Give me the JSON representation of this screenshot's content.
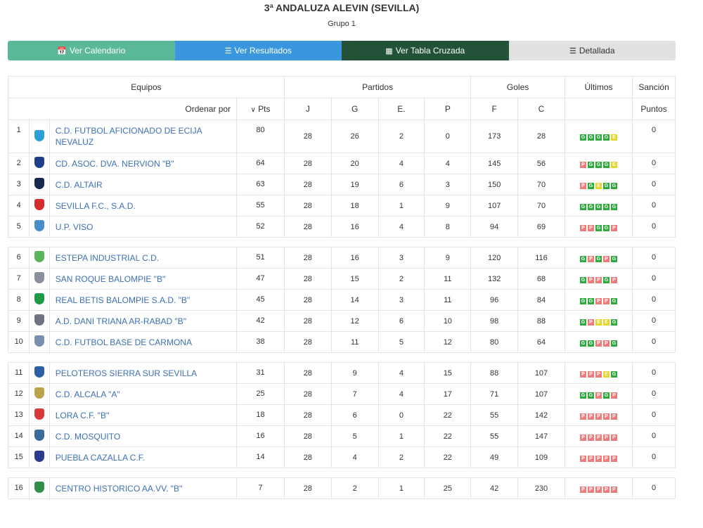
{
  "header": {
    "title": "3ª ANDALUZA ALEVIN (SEVILLA)",
    "subtitle": "Grupo 1"
  },
  "tabs": [
    {
      "label": "Ver Calendario",
      "icon": "calendar-icon"
    },
    {
      "label": "Ver Resultados",
      "icon": "list-icon"
    },
    {
      "label": "Ver Tabla Cruzada",
      "icon": "grid-icon"
    },
    {
      "label": "Detallada",
      "icon": "detail-list-icon"
    }
  ],
  "table_head": {
    "equipos": "Equipos",
    "partidos": "Partidos",
    "goles": "Goles",
    "ultimos": "Últimos",
    "sancion": "Sanción",
    "ordenar": "Ordenar por",
    "pts": "Pts",
    "j": "J",
    "g": "G",
    "e": "E.",
    "p": "P",
    "f": "F",
    "c": "C",
    "puntos": "Puntos"
  },
  "colors": {
    "win": "#2eaa3c",
    "loss": "#ee7b7b",
    "draw": "#e8d52a",
    "link": "#3d6fb3"
  },
  "groups": [
    [
      {
        "pos": "1",
        "team": "C.D. FUTBOL AFICIONADO DE ECIJA NEVALUZ",
        "pts": "80",
        "j": "28",
        "g": "26",
        "e": "2",
        "p": "0",
        "f": "173",
        "c": "28",
        "last": [
          "G",
          "G",
          "G",
          "G",
          "E"
        ],
        "sancion": "0",
        "crest": "#2e9fd6"
      },
      {
        "pos": "2",
        "team": "CD. ASOC. DVA. NERVION \"B\"",
        "pts": "64",
        "j": "28",
        "g": "20",
        "e": "4",
        "p": "4",
        "f": "145",
        "c": "56",
        "last": [
          "P",
          "G",
          "G",
          "G",
          "E"
        ],
        "sancion": "0",
        "crest": "#1e3d8c"
      },
      {
        "pos": "3",
        "team": "C.D. ALTAIR",
        "pts": "63",
        "j": "28",
        "g": "19",
        "e": "6",
        "p": "3",
        "f": "150",
        "c": "70",
        "last": [
          "P",
          "G",
          "E",
          "G",
          "G"
        ],
        "sancion": "0",
        "crest": "#17284f"
      },
      {
        "pos": "4",
        "team": "SEVILLA F.C., S.A.D.",
        "pts": "55",
        "j": "28",
        "g": "18",
        "e": "1",
        "p": "9",
        "f": "107",
        "c": "70",
        "last": [
          "G",
          "G",
          "G",
          "G",
          "G"
        ],
        "sancion": "0",
        "crest": "#d62c2c"
      },
      {
        "pos": "5",
        "team": "U.P. VISO",
        "pts": "52",
        "j": "28",
        "g": "16",
        "e": "4",
        "p": "8",
        "f": "94",
        "c": "69",
        "last": [
          "P",
          "P",
          "G",
          "G",
          "P"
        ],
        "sancion": "0",
        "crest": "#4a8cc9"
      }
    ],
    [
      {
        "pos": "6",
        "team": "ESTEPA INDUSTRIAL C.D.",
        "pts": "51",
        "j": "28",
        "g": "16",
        "e": "3",
        "p": "9",
        "f": "120",
        "c": "116",
        "last": [
          "G",
          "P",
          "G",
          "P",
          "G"
        ],
        "sancion": "0",
        "crest": "#5ab55a"
      },
      {
        "pos": "7",
        "team": "SAN ROQUE BALOMPIE \"B\"",
        "pts": "47",
        "j": "28",
        "g": "15",
        "e": "2",
        "p": "11",
        "f": "132",
        "c": "68",
        "last": [
          "G",
          "P",
          "P",
          "G",
          "P"
        ],
        "sancion": "0",
        "crest": "#8a8fa0"
      },
      {
        "pos": "8",
        "team": "REAL BETIS BALOMPIE S.A.D. \"B\"",
        "pts": "45",
        "j": "28",
        "g": "14",
        "e": "3",
        "p": "11",
        "f": "96",
        "c": "84",
        "last": [
          "G",
          "G",
          "P",
          "P",
          "G"
        ],
        "sancion": "0",
        "crest": "#1e9b47"
      },
      {
        "pos": "9",
        "team": "A.D. DANI TRIANA AR-RABAD \"B\"",
        "pts": "42",
        "j": "28",
        "g": "12",
        "e": "6",
        "p": "10",
        "f": "98",
        "c": "88",
        "last": [
          "G",
          "P",
          "E",
          "E",
          "G"
        ],
        "sancion": "0",
        "crest": "#6f7480"
      },
      {
        "pos": "10",
        "team": "C.D. FUTBOL BASE DE CARMONA",
        "pts": "38",
        "j": "28",
        "g": "11",
        "e": "5",
        "p": "12",
        "f": "80",
        "c": "64",
        "last": [
          "G",
          "G",
          "P",
          "P",
          "G"
        ],
        "sancion": "0",
        "crest": "#7a8fb0"
      }
    ],
    [
      {
        "pos": "11",
        "team": "PELOTEROS SIERRA SUR SEVILLA",
        "pts": "31",
        "j": "28",
        "g": "9",
        "e": "4",
        "p": "15",
        "f": "88",
        "c": "107",
        "last": [
          "P",
          "P",
          "P",
          "E",
          "G"
        ],
        "sancion": "0",
        "crest": "#2a5fa8"
      },
      {
        "pos": "12",
        "team": "C.D. ALCALA \"A\"",
        "pts": "25",
        "j": "28",
        "g": "7",
        "e": "4",
        "p": "17",
        "f": "71",
        "c": "107",
        "last": [
          "G",
          "G",
          "P",
          "G",
          "P"
        ],
        "sancion": "0",
        "crest": "#b9a24a"
      },
      {
        "pos": "13",
        "team": "LORA C.F. \"B\"",
        "pts": "18",
        "j": "28",
        "g": "6",
        "e": "0",
        "p": "22",
        "f": "55",
        "c": "142",
        "last": [
          "P",
          "P",
          "P",
          "P",
          "P"
        ],
        "sancion": "0",
        "crest": "#d63a3a"
      },
      {
        "pos": "14",
        "team": "C.D. MOSQUITO",
        "pts": "16",
        "j": "28",
        "g": "5",
        "e": "1",
        "p": "22",
        "f": "55",
        "c": "147",
        "last": [
          "P",
          "P",
          "P",
          "P",
          "P"
        ],
        "sancion": "0",
        "crest": "#3b6a9c"
      },
      {
        "pos": "15",
        "team": "PUEBLA CAZALLA C.F.",
        "pts": "14",
        "j": "28",
        "g": "4",
        "e": "2",
        "p": "22",
        "f": "49",
        "c": "109",
        "last": [
          "P",
          "P",
          "P",
          "P",
          "P"
        ],
        "sancion": "0",
        "crest": "#2b3a8f"
      }
    ],
    [
      {
        "pos": "16",
        "team": "CENTRO HISTORICO AA.VV. \"B\"",
        "pts": "7",
        "j": "28",
        "g": "2",
        "e": "1",
        "p": "25",
        "f": "42",
        "c": "230",
        "last": [
          "P",
          "P",
          "P",
          "P",
          "P"
        ],
        "sancion": "0",
        "crest": "#2f8f4a"
      }
    ]
  ]
}
